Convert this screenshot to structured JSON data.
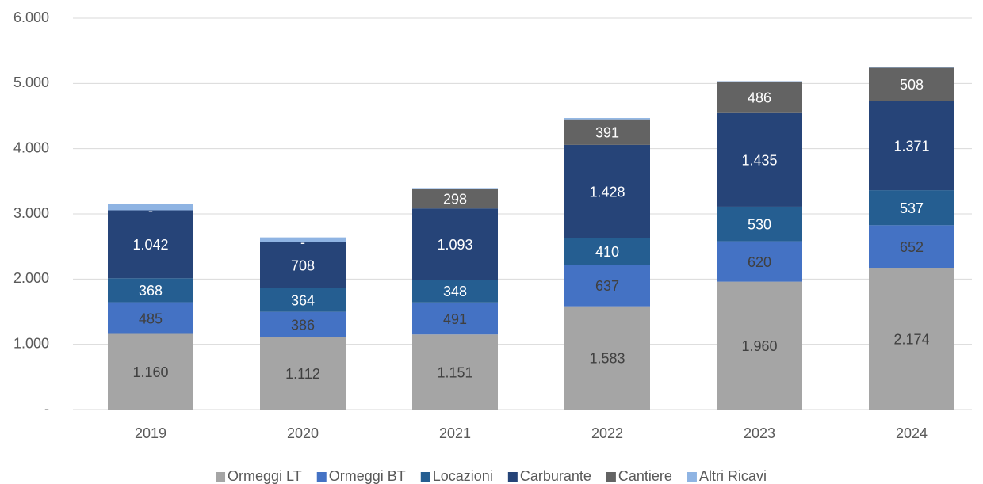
{
  "chart_data": {
    "type": "stacked_bar",
    "categories": [
      "2019",
      "2020",
      "2021",
      "2022",
      "2023",
      "2024"
    ],
    "series": [
      {
        "name": "Ormeggi LT",
        "color": "#a5a5a5",
        "values": [
          1160,
          1112,
          1151,
          1583,
          1960,
          2174
        ],
        "value_labels": [
          "1.160",
          "1.112",
          "1.151",
          "1.583",
          "1.960",
          "2.174"
        ],
        "label_color": "#404040"
      },
      {
        "name": "Ormeggi BT",
        "color": "#4472c4",
        "values": [
          485,
          386,
          491,
          637,
          620,
          652
        ],
        "label_color": "#404040"
      },
      {
        "name": "Locazioni",
        "color": "#255e91",
        "values": [
          368,
          364,
          348,
          410,
          530,
          537
        ],
        "label_color": "#ffffff"
      },
      {
        "name": "Carburante",
        "color": "#264478",
        "values": [
          1042,
          708,
          1093,
          1428,
          1435,
          1371
        ],
        "value_labels": [
          "1.042",
          "708",
          "1.093",
          "1.428",
          "1.435",
          "1.371"
        ],
        "label_color": "#ffffff"
      },
      {
        "name": "Cantiere",
        "color": "#636363",
        "values": [
          0,
          0,
          298,
          391,
          486,
          508
        ],
        "value_labels": [
          "-",
          "-",
          "298",
          "391",
          "486",
          "508"
        ],
        "label_color": "#ffffff"
      },
      {
        "name": "Altri Ricavi",
        "color": "#8fb4e3",
        "values": [
          95,
          70,
          15,
          20,
          5,
          5
        ]
      }
    ],
    "ylim": [
      0,
      6000
    ],
    "yticks": [
      {
        "value": 0,
        "label": "-"
      },
      {
        "value": 1000,
        "label": "1.000"
      },
      {
        "value": 2000,
        "label": "2.000"
      },
      {
        "value": 3000,
        "label": "3.000"
      },
      {
        "value": 4000,
        "label": "4.000"
      },
      {
        "value": 5000,
        "label": "5.000"
      },
      {
        "value": 6000,
        "label": "6.000"
      }
    ],
    "grid": true,
    "legend": "bottom"
  }
}
